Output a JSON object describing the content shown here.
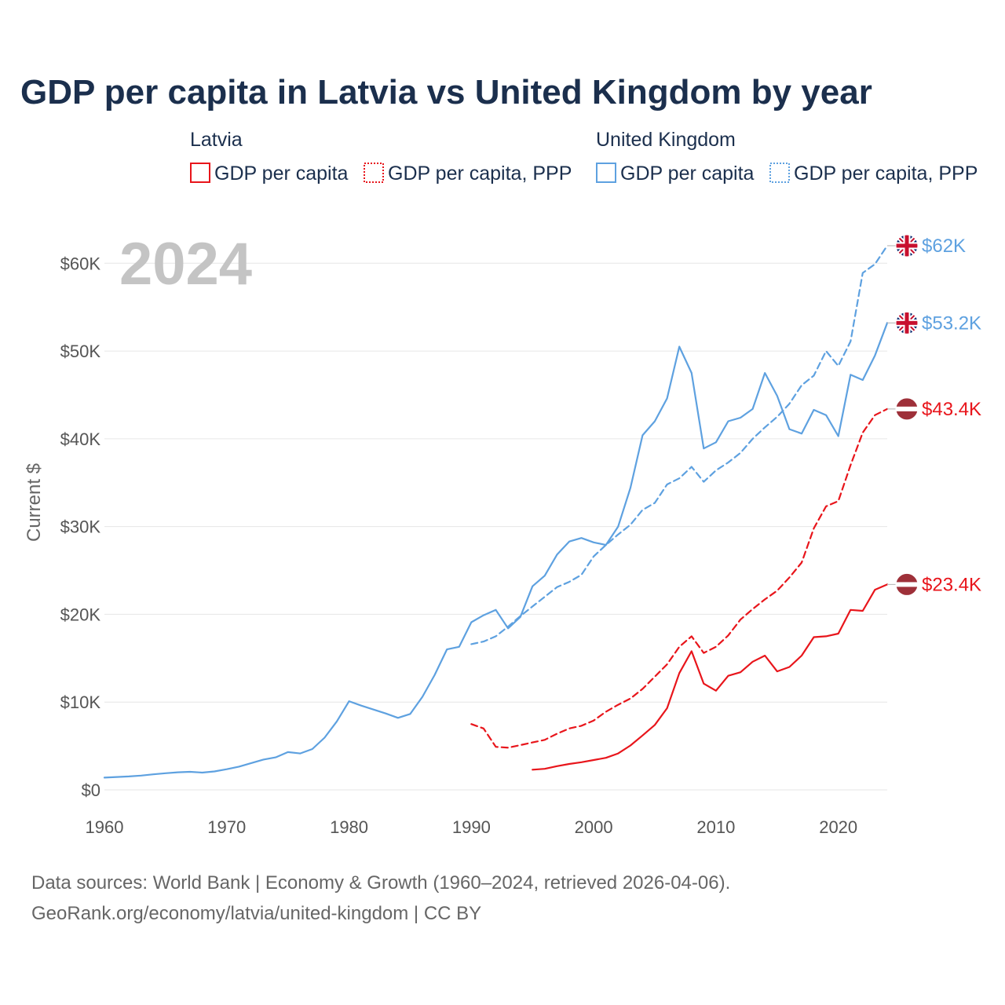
{
  "colors": {
    "latvia": "#e8151b",
    "uk": "#5ea1e0",
    "title": "#1b2f4d",
    "year": "#c4c4c4"
  },
  "chart_data": {
    "type": "line",
    "title": "GDP per capita in Latvia vs United Kingdom by year",
    "ylabel": "Current $",
    "xlim": [
      1960,
      2024
    ],
    "ylim": [
      0,
      65000
    ],
    "x_ticks": [
      1960,
      1970,
      1980,
      1990,
      2000,
      2010,
      2020
    ],
    "x_tick_labels": [
      "1960",
      "1970",
      "1980",
      "1990",
      "2000",
      "2010",
      "2020"
    ],
    "y_ticks": [
      0,
      10000,
      20000,
      30000,
      40000,
      50000,
      60000
    ],
    "y_tick_labels": [
      "$0",
      "$10K",
      "$20K",
      "$30K",
      "$40K",
      "$50K",
      "$60K"
    ],
    "year_label": "2024",
    "legend": {
      "groups": [
        {
          "name": "Latvia",
          "items": [
            "GDP per capita",
            "GDP per capita, PPP"
          ]
        },
        {
          "name": "United Kingdom",
          "items": [
            "GDP per capita",
            "GDP per capita, PPP"
          ]
        }
      ]
    },
    "series": [
      {
        "id": "lv-gdp",
        "name": "Latvia GDP per capita",
        "color": "#e8151b",
        "dashed": false,
        "end_label": "$23.4K",
        "flag": "latvia",
        "x": [
          1995,
          1996,
          1997,
          1998,
          1999,
          2000,
          2001,
          2002,
          2003,
          2004,
          2005,
          2006,
          2007,
          2008,
          2009,
          2010,
          2011,
          2012,
          2013,
          2014,
          2015,
          2016,
          2017,
          2018,
          2019,
          2020,
          2021,
          2022,
          2023,
          2024
        ],
        "values": [
          2300,
          2400,
          2700,
          2950,
          3150,
          3400,
          3650,
          4150,
          5050,
          6200,
          7400,
          9300,
          13300,
          15800,
          12100,
          11300,
          13000,
          13400,
          14600,
          15300,
          13500,
          14000,
          15300,
          17400,
          17500,
          17800,
          20500,
          20400,
          22800,
          23400
        ]
      },
      {
        "id": "lv-ppp",
        "name": "Latvia GDP per capita, PPP",
        "color": "#e8151b",
        "dashed": true,
        "end_label": "$43.4K",
        "flag": "latvia",
        "x": [
          1990,
          1991,
          1992,
          1993,
          1994,
          1995,
          1996,
          1997,
          1998,
          1999,
          2000,
          2001,
          2002,
          2003,
          2004,
          2005,
          2006,
          2007,
          2008,
          2009,
          2010,
          2011,
          2012,
          2013,
          2014,
          2015,
          2016,
          2017,
          2018,
          2019,
          2020,
          2021,
          2022,
          2023,
          2024
        ],
        "values": [
          7500,
          7000,
          4900,
          4800,
          5100,
          5400,
          5700,
          6400,
          7000,
          7300,
          7900,
          8900,
          9700,
          10400,
          11500,
          12900,
          14300,
          16300,
          17500,
          15600,
          16300,
          17600,
          19400,
          20600,
          21700,
          22700,
          24200,
          25900,
          29800,
          32300,
          32900,
          37000,
          40700,
          42700,
          43400
        ]
      },
      {
        "id": "uk-gdp",
        "name": "United Kingdom GDP per capita",
        "color": "#5ea1e0",
        "dashed": false,
        "end_label": "$53.2K",
        "flag": "uk",
        "x": [
          1960,
          1961,
          1962,
          1963,
          1964,
          1965,
          1966,
          1967,
          1968,
          1969,
          1970,
          1971,
          1972,
          1973,
          1974,
          1975,
          1976,
          1977,
          1978,
          1979,
          1980,
          1981,
          1982,
          1983,
          1984,
          1985,
          1986,
          1987,
          1988,
          1989,
          1990,
          1991,
          1992,
          1993,
          1994,
          1995,
          1996,
          1997,
          1998,
          1999,
          2000,
          2001,
          2002,
          2003,
          2004,
          2005,
          2006,
          2007,
          2008,
          2009,
          2010,
          2011,
          2012,
          2013,
          2014,
          2015,
          2016,
          2017,
          2018,
          2019,
          2020,
          2021,
          2022,
          2023,
          2024
        ],
        "values": [
          1400,
          1470,
          1530,
          1630,
          1770,
          1900,
          2000,
          2060,
          1970,
          2100,
          2350,
          2650,
          3050,
          3450,
          3700,
          4300,
          4150,
          4650,
          5950,
          7800,
          10100,
          9600,
          9150,
          8700,
          8200,
          8650,
          10600,
          13100,
          16000,
          16300,
          19100,
          19900,
          20500,
          18400,
          19700,
          23200,
          24400,
          26800,
          28300,
          28700,
          28200,
          27900,
          30000,
          34400,
          40400,
          42000,
          44600,
          50500,
          47500,
          38900,
          39600,
          42000,
          42400,
          43400,
          47500,
          44900,
          41100,
          40600,
          43300,
          42700,
          40300,
          47300,
          46700,
          49500,
          53200
        ]
      },
      {
        "id": "uk-ppp",
        "name": "United Kingdom GDP per capita, PPP",
        "color": "#5ea1e0",
        "dashed": true,
        "end_label": "$62K",
        "flag": "uk",
        "x": [
          1990,
          1991,
          1992,
          1993,
          1994,
          1995,
          1996,
          1997,
          1998,
          1999,
          2000,
          2001,
          2002,
          2003,
          2004,
          2005,
          2006,
          2007,
          2008,
          2009,
          2010,
          2011,
          2012,
          2013,
          2014,
          2015,
          2016,
          2017,
          2018,
          2019,
          2020,
          2021,
          2022,
          2023,
          2024
        ],
        "values": [
          16600,
          16900,
          17500,
          18600,
          19800,
          20900,
          22000,
          23100,
          23700,
          24500,
          26600,
          27900,
          29100,
          30200,
          31900,
          32700,
          34800,
          35500,
          36800,
          35100,
          36400,
          37300,
          38400,
          40000,
          41300,
          42500,
          44000,
          46100,
          47200,
          50000,
          48300,
          51100,
          58900,
          59900,
          62000
        ]
      }
    ],
    "source_line1": "Data sources: World Bank | Economy & Growth (1960–2024, retrieved 2026-04-06).",
    "source_line2": "GeoRank.org/economy/latvia/united-kingdom | CC BY"
  }
}
